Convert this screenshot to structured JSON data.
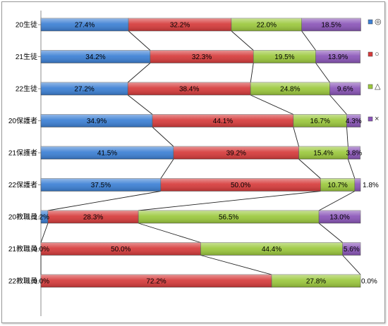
{
  "chart_data": {
    "type": "bar",
    "orientation": "horizontal",
    "stacked": "percent",
    "categories": [
      "20生徒",
      "21生徒",
      "22生徒",
      "20保護者",
      "21保護者",
      "22保護者",
      "20教職員",
      "21教職員",
      "22教職員"
    ],
    "series": [
      {
        "name": "◎",
        "color": "#3b7fd4",
        "values": [
          27.4,
          34.2,
          27.2,
          34.9,
          41.5,
          37.5,
          2.2,
          0.0,
          0.0
        ],
        "labels": [
          "27.4%",
          "34.2%",
          "27.2%",
          "34.9%",
          "41.5%",
          "37.5%",
          "2.2%",
          "0.0%",
          "0.0%"
        ]
      },
      {
        "name": "○",
        "color": "#d63a3a",
        "values": [
          32.2,
          32.3,
          38.4,
          44.1,
          39.2,
          50.0,
          28.3,
          50.0,
          72.2
        ],
        "labels": [
          "32.2%",
          "32.3%",
          "38.4%",
          "44.1%",
          "39.2%",
          "50.0%",
          "28.3%",
          "50.0%",
          "72.2%"
        ]
      },
      {
        "name": "△",
        "color": "#9bc83c",
        "values": [
          22.0,
          19.5,
          24.8,
          16.7,
          15.4,
          10.7,
          56.5,
          44.4,
          27.8
        ],
        "labels": [
          "22.0%",
          "19.5%",
          "24.8%",
          "16.7%",
          "15.4%",
          "10.7%",
          "56.5%",
          "44.4%",
          "27.8%"
        ]
      },
      {
        "name": "×",
        "color": "#8a55b8",
        "values": [
          18.5,
          13.9,
          9.6,
          4.3,
          3.8,
          1.8,
          13.0,
          5.6,
          0.0
        ],
        "labels": [
          "18.5%",
          "13.9%",
          "9.6%",
          "4.3%",
          "3.8%",
          "1.8%",
          "13.0%",
          "5.6%",
          "0.0%"
        ]
      }
    ],
    "xlim": [
      0,
      100
    ],
    "series_lines": true,
    "legend": "right"
  }
}
